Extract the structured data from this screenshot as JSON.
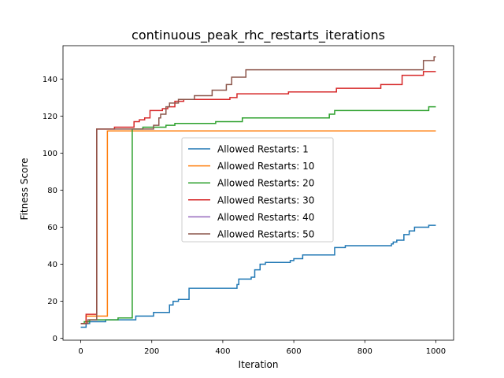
{
  "chart_data": {
    "type": "line",
    "title": "continuous_peak_rhc_restarts_iterations",
    "xlabel": "Iteration",
    "ylabel": "Fitness Score",
    "xlim": [
      -50,
      1050
    ],
    "ylim": [
      -1,
      158
    ],
    "xticks": [
      0,
      200,
      400,
      600,
      800,
      1000
    ],
    "yticks": [
      0,
      20,
      40,
      60,
      80,
      100,
      120,
      140
    ],
    "grid": false,
    "legend_position": "center",
    "series": [
      {
        "name": "Allowed Restarts: 1",
        "color": "#1f77b4",
        "points": [
          [
            0,
            6
          ],
          [
            15,
            6
          ],
          [
            15,
            8
          ],
          [
            25,
            8
          ],
          [
            25,
            9
          ],
          [
            70,
            9
          ],
          [
            70,
            10
          ],
          [
            155,
            10
          ],
          [
            155,
            12
          ],
          [
            205,
            12
          ],
          [
            205,
            14
          ],
          [
            250,
            14
          ],
          [
            250,
            18
          ],
          [
            260,
            18
          ],
          [
            260,
            20
          ],
          [
            275,
            20
          ],
          [
            275,
            21
          ],
          [
            305,
            21
          ],
          [
            305,
            27
          ],
          [
            440,
            27
          ],
          [
            440,
            29
          ],
          [
            445,
            29
          ],
          [
            445,
            32
          ],
          [
            480,
            32
          ],
          [
            480,
            33
          ],
          [
            490,
            33
          ],
          [
            490,
            37
          ],
          [
            505,
            37
          ],
          [
            505,
            40
          ],
          [
            520,
            40
          ],
          [
            520,
            41
          ],
          [
            590,
            41
          ],
          [
            590,
            42
          ],
          [
            600,
            42
          ],
          [
            600,
            43
          ],
          [
            625,
            43
          ],
          [
            625,
            45
          ],
          [
            715,
            45
          ],
          [
            715,
            49
          ],
          [
            745,
            49
          ],
          [
            745,
            50
          ],
          [
            875,
            50
          ],
          [
            875,
            51
          ],
          [
            880,
            51
          ],
          [
            880,
            52
          ],
          [
            890,
            52
          ],
          [
            890,
            53
          ],
          [
            910,
            53
          ],
          [
            910,
            56
          ],
          [
            925,
            56
          ],
          [
            925,
            58
          ],
          [
            940,
            58
          ],
          [
            940,
            60
          ],
          [
            980,
            60
          ],
          [
            980,
            61
          ],
          [
            1000,
            61
          ]
        ]
      },
      {
        "name": "Allowed Restarts: 10",
        "color": "#ff7f0e",
        "points": [
          [
            0,
            8
          ],
          [
            15,
            8
          ],
          [
            15,
            12
          ],
          [
            75,
            12
          ],
          [
            75,
            112
          ],
          [
            1000,
            112
          ]
        ]
      },
      {
        "name": "Allowed Restarts: 20",
        "color": "#2ca02c",
        "points": [
          [
            0,
            8
          ],
          [
            10,
            8
          ],
          [
            10,
            9
          ],
          [
            25,
            9
          ],
          [
            25,
            10
          ],
          [
            105,
            10
          ],
          [
            105,
            11
          ],
          [
            145,
            11
          ],
          [
            145,
            113
          ],
          [
            175,
            113
          ],
          [
            175,
            114
          ],
          [
            240,
            114
          ],
          [
            240,
            115
          ],
          [
            265,
            115
          ],
          [
            265,
            116
          ],
          [
            300,
            116
          ],
          [
            300,
            116
          ],
          [
            380,
            116
          ],
          [
            380,
            117
          ],
          [
            455,
            117
          ],
          [
            455,
            119
          ],
          [
            700,
            119
          ],
          [
            700,
            121
          ],
          [
            715,
            121
          ],
          [
            715,
            123
          ],
          [
            980,
            123
          ],
          [
            980,
            125
          ],
          [
            1000,
            125
          ]
        ]
      },
      {
        "name": "Allowed Restarts: 30",
        "color": "#d62728",
        "points": [
          [
            0,
            8
          ],
          [
            15,
            8
          ],
          [
            15,
            13
          ],
          [
            45,
            13
          ],
          [
            45,
            113
          ],
          [
            95,
            113
          ],
          [
            95,
            114
          ],
          [
            150,
            114
          ],
          [
            150,
            117
          ],
          [
            165,
            117
          ],
          [
            165,
            118
          ],
          [
            180,
            118
          ],
          [
            180,
            119
          ],
          [
            195,
            119
          ],
          [
            195,
            123
          ],
          [
            230,
            123
          ],
          [
            230,
            124
          ],
          [
            245,
            124
          ],
          [
            245,
            125
          ],
          [
            265,
            125
          ],
          [
            265,
            128
          ],
          [
            290,
            128
          ],
          [
            290,
            129
          ],
          [
            420,
            129
          ],
          [
            420,
            130
          ],
          [
            440,
            130
          ],
          [
            440,
            132
          ],
          [
            585,
            132
          ],
          [
            585,
            133
          ],
          [
            720,
            133
          ],
          [
            720,
            135
          ],
          [
            845,
            135
          ],
          [
            845,
            137
          ],
          [
            905,
            137
          ],
          [
            905,
            142
          ],
          [
            965,
            142
          ],
          [
            965,
            144
          ],
          [
            1000,
            144
          ]
        ]
      },
      {
        "name": "Allowed Restarts: 40",
        "color": "#9467bd",
        "points": []
      },
      {
        "name": "Allowed Restarts: 50",
        "color": "#8c564b",
        "points": [
          [
            0,
            8
          ],
          [
            20,
            8
          ],
          [
            20,
            10
          ],
          [
            45,
            10
          ],
          [
            45,
            113
          ],
          [
            85,
            113
          ],
          [
            85,
            113
          ],
          [
            205,
            113
          ],
          [
            205,
            115
          ],
          [
            220,
            115
          ],
          [
            220,
            119
          ],
          [
            225,
            119
          ],
          [
            225,
            121
          ],
          [
            240,
            121
          ],
          [
            240,
            125
          ],
          [
            250,
            125
          ],
          [
            250,
            127
          ],
          [
            275,
            127
          ],
          [
            275,
            129
          ],
          [
            320,
            129
          ],
          [
            320,
            131
          ],
          [
            345,
            131
          ],
          [
            345,
            131
          ],
          [
            370,
            131
          ],
          [
            370,
            134
          ],
          [
            410,
            134
          ],
          [
            410,
            137
          ],
          [
            425,
            137
          ],
          [
            425,
            141
          ],
          [
            465,
            141
          ],
          [
            465,
            145
          ],
          [
            965,
            145
          ],
          [
            965,
            150
          ],
          [
            995,
            150
          ],
          [
            995,
            152
          ],
          [
            1000,
            152
          ]
        ]
      }
    ]
  }
}
